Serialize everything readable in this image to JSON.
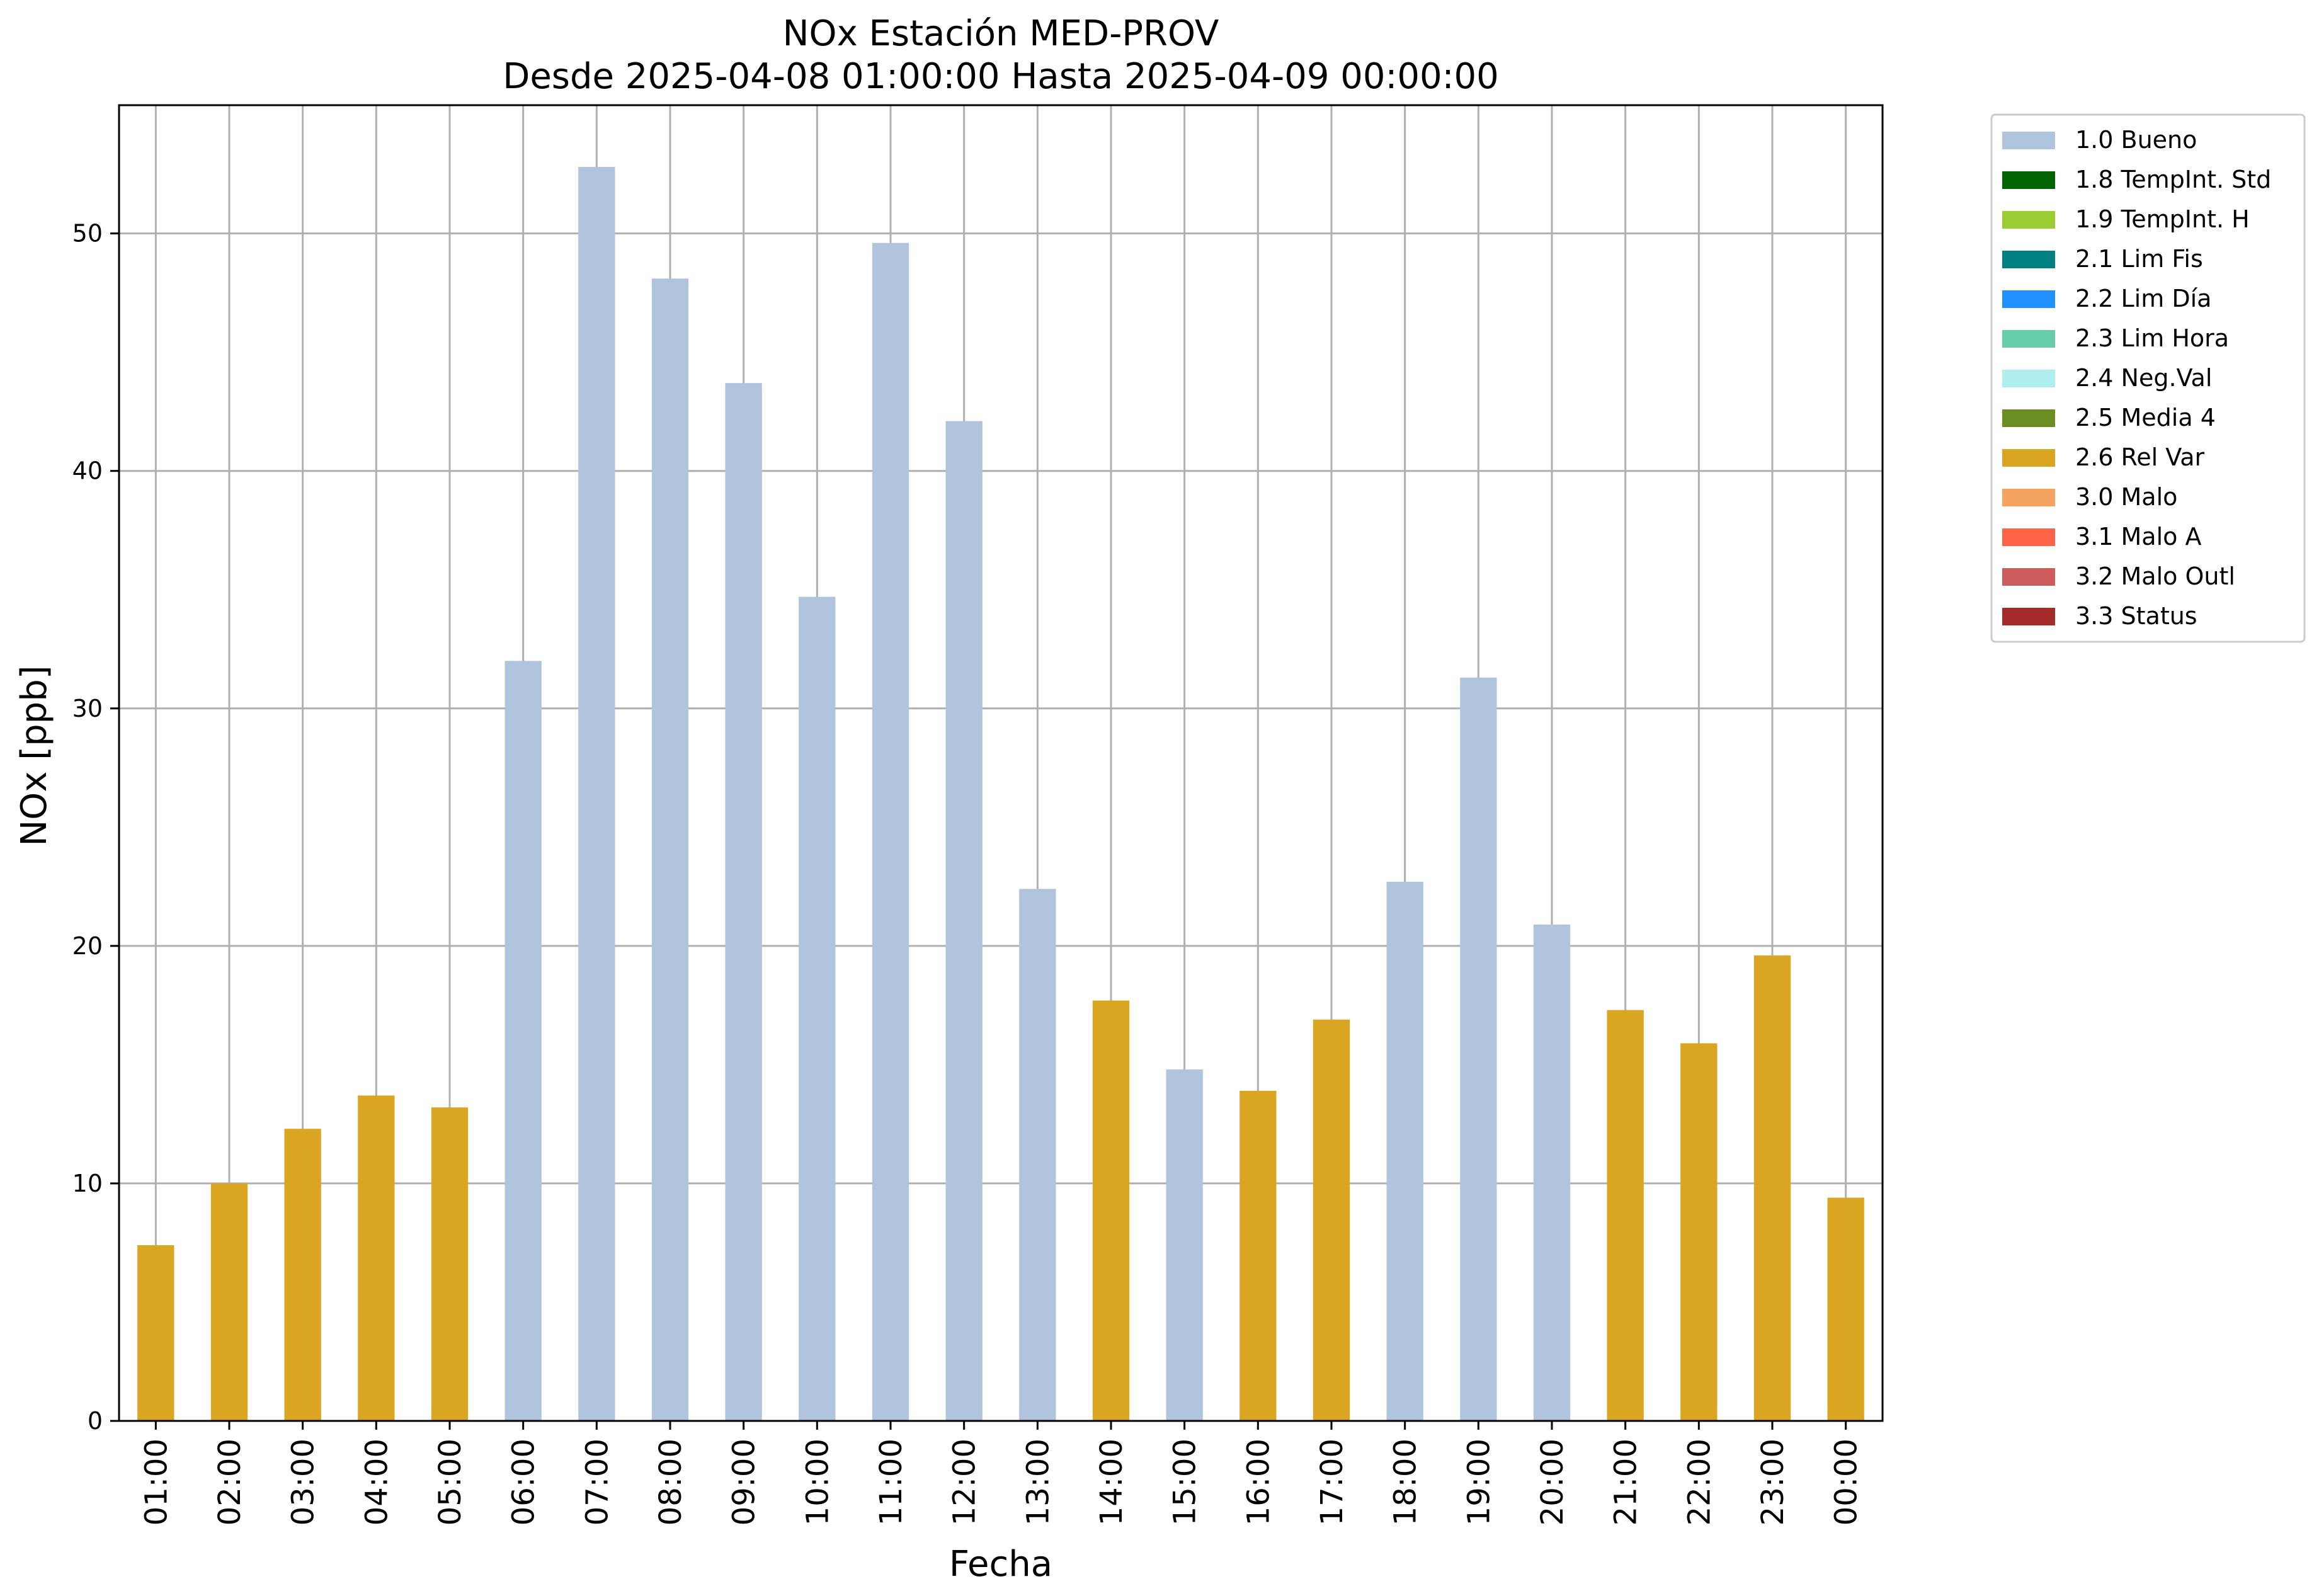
{
  "chart_data": {
    "type": "bar",
    "title": "NOx Estación MED-PROV",
    "subtitle": "Desde 2025-04-08 01:00:00 Hasta 2025-04-09 00:00:00",
    "xlabel": "Fecha",
    "ylabel": "NOx [ppb]",
    "ylim": [
      0,
      55.4
    ],
    "yticks": [
      0,
      10,
      20,
      30,
      40,
      50
    ],
    "grid": true,
    "legend_position": "outside-top-right",
    "categories": [
      "01:00",
      "02:00",
      "03:00",
      "04:00",
      "05:00",
      "06:00",
      "07:00",
      "08:00",
      "09:00",
      "10:00",
      "11:00",
      "12:00",
      "13:00",
      "14:00",
      "15:00",
      "16:00",
      "17:00",
      "18:00",
      "19:00",
      "20:00",
      "21:00",
      "22:00",
      "23:00",
      "00:00"
    ],
    "values": [
      7.4,
      10.0,
      12.3,
      13.7,
      13.2,
      32.0,
      52.8,
      48.1,
      43.7,
      34.7,
      49.6,
      42.1,
      22.4,
      17.7,
      14.8,
      13.9,
      16.9,
      22.7,
      31.3,
      20.9,
      17.3,
      15.9,
      19.6,
      9.4
    ],
    "flags": [
      "2.6",
      "2.6",
      "2.6",
      "2.6",
      "2.6",
      "1.0",
      "1.0",
      "1.0",
      "1.0",
      "1.0",
      "1.0",
      "1.0",
      "1.0",
      "2.6",
      "1.0",
      "2.6",
      "2.6",
      "1.0",
      "1.0",
      "1.0",
      "2.6",
      "2.6",
      "2.6",
      "2.6"
    ],
    "legend": [
      {
        "code": "1.0",
        "label": "1.0 Bueno",
        "color": "#b0c4de"
      },
      {
        "code": "1.8",
        "label": "1.8 TempInt. Std",
        "color": "#006400"
      },
      {
        "code": "1.9",
        "label": "1.9 TempInt. H",
        "color": "#9acd32"
      },
      {
        "code": "2.1",
        "label": "2.1 Lim Fis",
        "color": "#008080"
      },
      {
        "code": "2.2",
        "label": "2.2 Lim Día",
        "color": "#1e90ff"
      },
      {
        "code": "2.3",
        "label": "2.3 Lim Hora",
        "color": "#66cdaa"
      },
      {
        "code": "2.4",
        "label": "2.4 Neg.Val",
        "color": "#afeeee"
      },
      {
        "code": "2.5",
        "label": "2.5 Media 4",
        "color": "#6b8e23"
      },
      {
        "code": "2.6",
        "label": "2.6 Rel Var",
        "color": "#daa520"
      },
      {
        "code": "3.0",
        "label": "3.0 Malo",
        "color": "#f4a460"
      },
      {
        "code": "3.1",
        "label": "3.1 Malo A",
        "color": "#ff6347"
      },
      {
        "code": "3.2",
        "label": "3.2 Malo Outl",
        "color": "#cd5c5c"
      },
      {
        "code": "3.3",
        "label": "3.3 Status",
        "color": "#a52a2a"
      }
    ]
  }
}
